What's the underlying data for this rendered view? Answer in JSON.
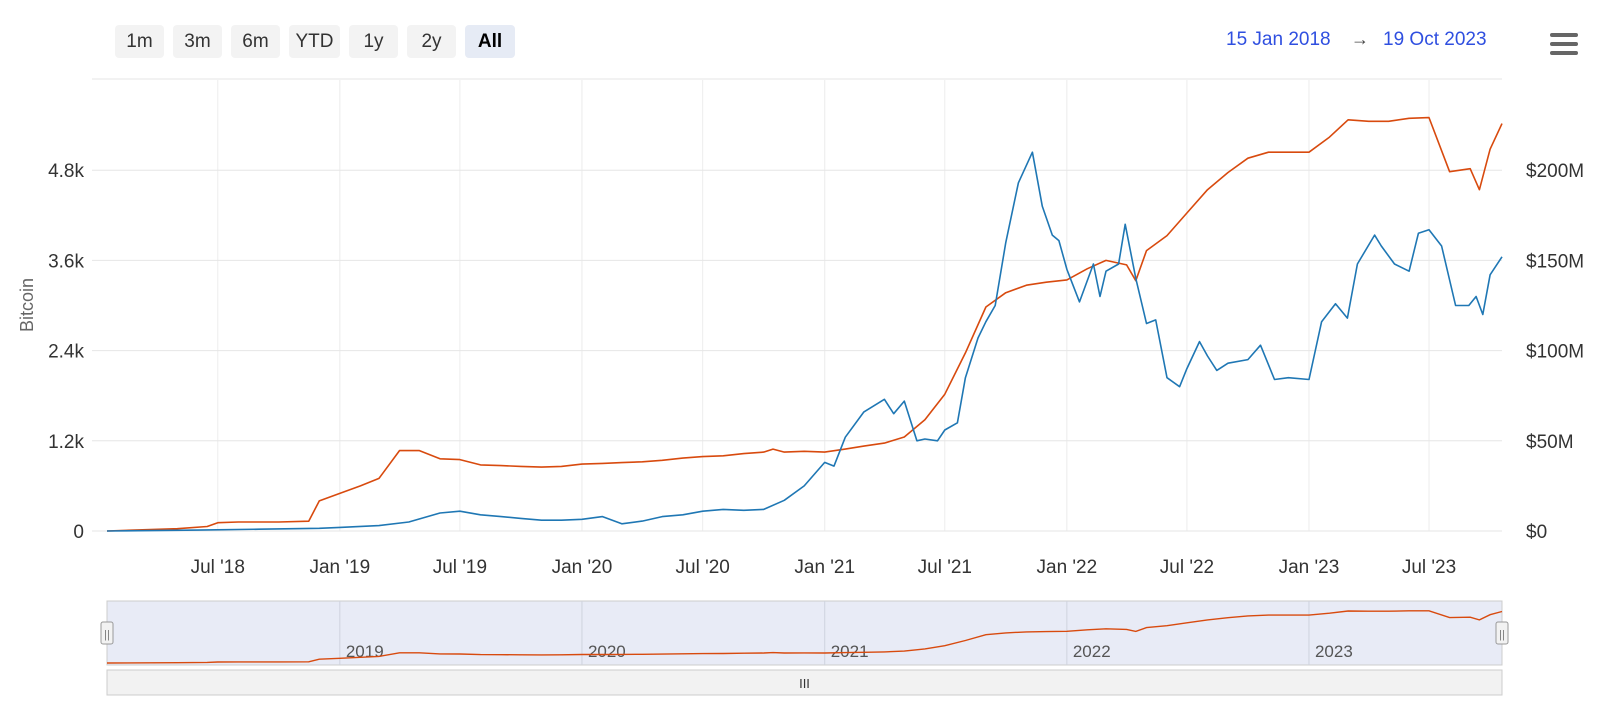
{
  "range_selector": {
    "buttons": [
      "1m",
      "3m",
      "6m",
      "YTD",
      "1y",
      "2y",
      "All"
    ],
    "active": "All"
  },
  "date_range": {
    "from": "15 Jan 2018",
    "arrow": "→",
    "to": "19 Oct 2023"
  },
  "menu": {
    "icon": "hamburger-menu-icon"
  },
  "navigator": {
    "scrollbar_grip": "III",
    "handle_glyph": "||"
  },
  "chart_data": {
    "type": "line",
    "y_left": {
      "label": "Bitcoin",
      "ticks": [
        "0",
        "1.2k",
        "2.4k",
        "3.6k",
        "4.8k"
      ],
      "tick_values": [
        0,
        1200,
        2400,
        3600,
        4800
      ],
      "range": [
        0,
        6000
      ]
    },
    "y_right": {
      "label": "",
      "ticks": [
        "$0",
        "$50M",
        "$100M",
        "$150M",
        "$200M"
      ],
      "tick_values": [
        0,
        50000000,
        100000000,
        150000000,
        200000000
      ],
      "range": [
        0,
        250000000
      ]
    },
    "x_ticks": [
      {
        "label": "Jul '18",
        "date": "2018-07-01"
      },
      {
        "label": "Jan '19",
        "date": "2019-01-01"
      },
      {
        "label": "Jul '19",
        "date": "2019-07-01"
      },
      {
        "label": "Jan '20",
        "date": "2020-01-01"
      },
      {
        "label": "Jul '20",
        "date": "2020-07-01"
      },
      {
        "label": "Jan '21",
        "date": "2021-01-01"
      },
      {
        "label": "Jul '21",
        "date": "2021-07-01"
      },
      {
        "label": "Jan '22",
        "date": "2022-01-01"
      },
      {
        "label": "Jul '22",
        "date": "2022-07-01"
      },
      {
        "label": "Jan '23",
        "date": "2023-01-01"
      },
      {
        "label": "Jul '23",
        "date": "2023-07-01"
      }
    ],
    "x_range": [
      "2018-01-15",
      "2023-10-19"
    ],
    "navigator_year_labels": [
      {
        "label": "2019",
        "date": "2019-01-01"
      },
      {
        "label": "2020",
        "date": "2020-01-01"
      },
      {
        "label": "2021",
        "date": "2021-01-01"
      },
      {
        "label": "2022",
        "date": "2022-01-01"
      },
      {
        "label": "2023",
        "date": "2023-01-01"
      }
    ],
    "grid": true,
    "legend": "none",
    "series": [
      {
        "color": "#d84a0e",
        "axis": "left",
        "points": [
          [
            "2018-01-15",
            0
          ],
          [
            "2018-05-01",
            30
          ],
          [
            "2018-06-15",
            60
          ],
          [
            "2018-07-01",
            110
          ],
          [
            "2018-08-01",
            120
          ],
          [
            "2018-10-01",
            120
          ],
          [
            "2018-11-15",
            130
          ],
          [
            "2018-12-01",
            400
          ],
          [
            "2019-01-01",
            500
          ],
          [
            "2019-02-01",
            600
          ],
          [
            "2019-03-01",
            700
          ],
          [
            "2019-04-01",
            1070
          ],
          [
            "2019-05-01",
            1070
          ],
          [
            "2019-06-01",
            960
          ],
          [
            "2019-07-01",
            950
          ],
          [
            "2019-08-01",
            880
          ],
          [
            "2019-09-01",
            870
          ],
          [
            "2019-10-01",
            860
          ],
          [
            "2019-11-01",
            850
          ],
          [
            "2019-12-01",
            860
          ],
          [
            "2020-01-01",
            890
          ],
          [
            "2020-02-01",
            900
          ],
          [
            "2020-03-01",
            910
          ],
          [
            "2020-04-01",
            920
          ],
          [
            "2020-05-01",
            940
          ],
          [
            "2020-06-01",
            970
          ],
          [
            "2020-07-01",
            990
          ],
          [
            "2020-08-01",
            1000
          ],
          [
            "2020-09-01",
            1030
          ],
          [
            "2020-10-01",
            1050
          ],
          [
            "2020-10-15",
            1090
          ],
          [
            "2020-11-01",
            1050
          ],
          [
            "2020-12-01",
            1060
          ],
          [
            "2021-01-01",
            1050
          ],
          [
            "2021-02-01",
            1090
          ],
          [
            "2021-03-01",
            1130
          ],
          [
            "2021-04-01",
            1170
          ],
          [
            "2021-05-01",
            1250
          ],
          [
            "2021-06-01",
            1480
          ],
          [
            "2021-07-01",
            1820
          ],
          [
            "2021-08-01",
            2370
          ],
          [
            "2021-09-01",
            2980
          ],
          [
            "2021-10-01",
            3170
          ],
          [
            "2021-11-01",
            3270
          ],
          [
            "2021-12-01",
            3310
          ],
          [
            "2022-01-01",
            3340
          ],
          [
            "2022-02-01",
            3490
          ],
          [
            "2022-03-01",
            3600
          ],
          [
            "2022-04-01",
            3540
          ],
          [
            "2022-04-15",
            3330
          ],
          [
            "2022-05-01",
            3730
          ],
          [
            "2022-06-01",
            3930
          ],
          [
            "2022-07-01",
            4230
          ],
          [
            "2022-08-01",
            4540
          ],
          [
            "2022-09-01",
            4770
          ],
          [
            "2022-10-01",
            4960
          ],
          [
            "2022-11-01",
            5040
          ],
          [
            "2022-12-01",
            5040
          ],
          [
            "2023-01-01",
            5040
          ],
          [
            "2023-02-01",
            5240
          ],
          [
            "2023-03-01",
            5470
          ],
          [
            "2023-04-01",
            5450
          ],
          [
            "2023-05-01",
            5450
          ],
          [
            "2023-06-01",
            5490
          ],
          [
            "2023-07-01",
            5500
          ],
          [
            "2023-08-01",
            4780
          ],
          [
            "2023-09-01",
            4820
          ],
          [
            "2023-09-15",
            4540
          ],
          [
            "2023-10-01",
            5080
          ],
          [
            "2023-10-19",
            5420
          ]
        ]
      },
      {
        "color": "#1f77b4",
        "axis": "right",
        "points": [
          [
            "2018-01-15",
            0
          ],
          [
            "2018-06-01",
            500000
          ],
          [
            "2018-09-01",
            1000000
          ],
          [
            "2018-12-01",
            1500000
          ],
          [
            "2019-01-01",
            2000000
          ],
          [
            "2019-03-01",
            3000000
          ],
          [
            "2019-04-15",
            5000000
          ],
          [
            "2019-06-01",
            10000000
          ],
          [
            "2019-07-01",
            11000000
          ],
          [
            "2019-08-01",
            9000000
          ],
          [
            "2019-09-01",
            8000000
          ],
          [
            "2019-10-01",
            7000000
          ],
          [
            "2019-11-01",
            6000000
          ],
          [
            "2019-12-01",
            6000000
          ],
          [
            "2020-01-01",
            6500000
          ],
          [
            "2020-02-01",
            8000000
          ],
          [
            "2020-03-01",
            4000000
          ],
          [
            "2020-04-01",
            5500000
          ],
          [
            "2020-05-01",
            8000000
          ],
          [
            "2020-06-01",
            9000000
          ],
          [
            "2020-07-01",
            11000000
          ],
          [
            "2020-08-01",
            12000000
          ],
          [
            "2020-09-01",
            11500000
          ],
          [
            "2020-10-01",
            12000000
          ],
          [
            "2020-11-01",
            17000000
          ],
          [
            "2020-12-01",
            25000000
          ],
          [
            "2021-01-01",
            38000000
          ],
          [
            "2021-01-15",
            36000000
          ],
          [
            "2021-02-01",
            52000000
          ],
          [
            "2021-03-01",
            66000000
          ],
          [
            "2021-04-01",
            73000000
          ],
          [
            "2021-04-15",
            65000000
          ],
          [
            "2021-05-01",
            72000000
          ],
          [
            "2021-05-20",
            50000000
          ],
          [
            "2021-06-01",
            51000000
          ],
          [
            "2021-06-20",
            50000000
          ],
          [
            "2021-07-01",
            56000000
          ],
          [
            "2021-07-20",
            60000000
          ],
          [
            "2021-08-01",
            85000000
          ],
          [
            "2021-08-20",
            107000000
          ],
          [
            "2021-09-01",
            116000000
          ],
          [
            "2021-09-15",
            125000000
          ],
          [
            "2021-10-01",
            160000000
          ],
          [
            "2021-10-20",
            193000000
          ],
          [
            "2021-11-10",
            210000000
          ],
          [
            "2021-11-25",
            180000000
          ],
          [
            "2021-12-10",
            164000000
          ],
          [
            "2021-12-20",
            161000000
          ],
          [
            "2022-01-01",
            145000000
          ],
          [
            "2022-01-20",
            127000000
          ],
          [
            "2022-02-10",
            148000000
          ],
          [
            "2022-02-20",
            130000000
          ],
          [
            "2022-03-01",
            144000000
          ],
          [
            "2022-03-20",
            148000000
          ],
          [
            "2022-03-30",
            170000000
          ],
          [
            "2022-04-15",
            140000000
          ],
          [
            "2022-05-01",
            115000000
          ],
          [
            "2022-05-15",
            117000000
          ],
          [
            "2022-06-01",
            85000000
          ],
          [
            "2022-06-20",
            80000000
          ],
          [
            "2022-07-01",
            90000000
          ],
          [
            "2022-07-20",
            105000000
          ],
          [
            "2022-08-01",
            97000000
          ],
          [
            "2022-08-15",
            89000000
          ],
          [
            "2022-09-01",
            93000000
          ],
          [
            "2022-10-01",
            95000000
          ],
          [
            "2022-10-20",
            103000000
          ],
          [
            "2022-11-10",
            84000000
          ],
          [
            "2022-12-01",
            85000000
          ],
          [
            "2023-01-01",
            84000000
          ],
          [
            "2023-01-20",
            116000000
          ],
          [
            "2023-02-10",
            126000000
          ],
          [
            "2023-02-28",
            118000000
          ],
          [
            "2023-03-15",
            148000000
          ],
          [
            "2023-04-10",
            164000000
          ],
          [
            "2023-04-20",
            158000000
          ],
          [
            "2023-05-10",
            148000000
          ],
          [
            "2023-06-01",
            144000000
          ],
          [
            "2023-06-15",
            165000000
          ],
          [
            "2023-07-01",
            167000000
          ],
          [
            "2023-07-20",
            158000000
          ],
          [
            "2023-08-10",
            125000000
          ],
          [
            "2023-08-30",
            125000000
          ],
          [
            "2023-09-10",
            130000000
          ],
          [
            "2023-09-20",
            120000000
          ],
          [
            "2023-10-01",
            142000000
          ],
          [
            "2023-10-19",
            152000000
          ]
        ]
      }
    ]
  }
}
